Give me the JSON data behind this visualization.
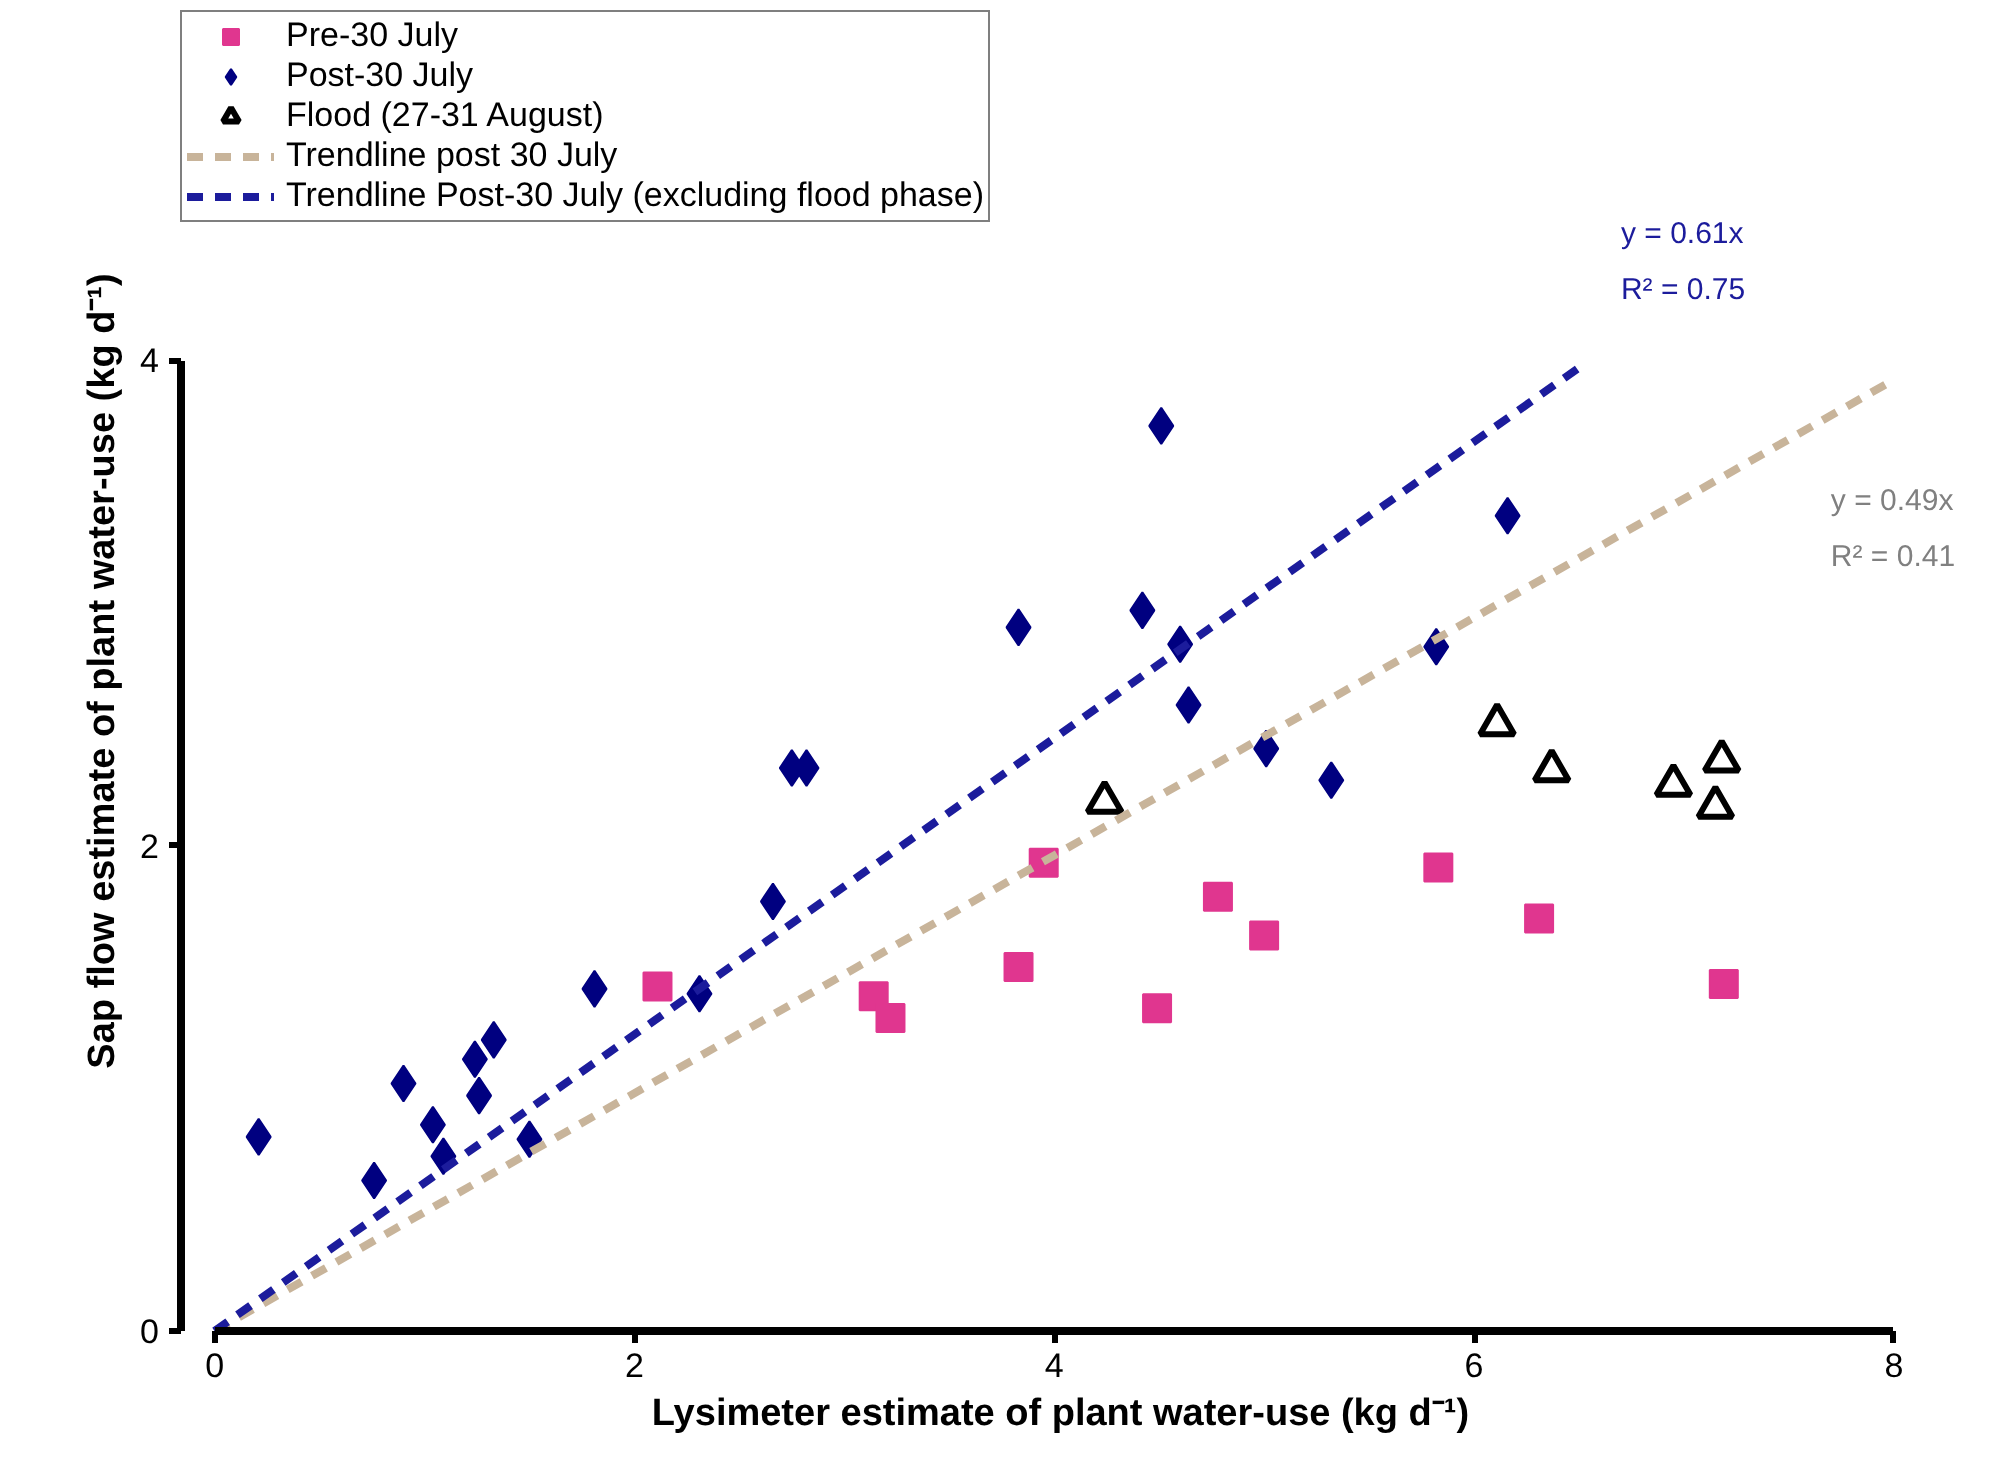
{
  "chart_data": {
    "type": "scatter",
    "xlabel": "Lysimeter estimate of plant water-use   (kg d⁻¹)",
    "ylabel": "Sap flow estimate of plant water-use (kg d⁻¹)",
    "xlim": [
      0,
      8
    ],
    "ylim": [
      0,
      4
    ],
    "xticks": [
      0,
      2,
      4,
      6,
      8
    ],
    "yticks": [
      0,
      2,
      4
    ],
    "grid": false,
    "legend": "top",
    "series": [
      {
        "name": "Pre-30 July",
        "marker": "square",
        "color": "#e0368f",
        "x": [
          2.11,
          3.14,
          3.22,
          3.83,
          3.95,
          4.49,
          4.78,
          5.0,
          5.83,
          6.31,
          7.19
        ],
        "values": [
          1.42,
          1.38,
          1.29,
          1.5,
          1.93,
          1.33,
          1.79,
          1.63,
          1.91,
          1.7,
          1.43
        ]
      },
      {
        "name": "Post-30 July",
        "marker": "diamond",
        "color": "#000080",
        "x": [
          0.21,
          0.76,
          0.9,
          1.04,
          1.09,
          1.26,
          1.24,
          1.33,
          1.5,
          1.81,
          2.31,
          2.66,
          2.75,
          2.82,
          3.83,
          4.51,
          4.42,
          4.6,
          4.64,
          5.01,
          5.32,
          5.82,
          6.16
        ],
        "values": [
          0.8,
          0.62,
          1.02,
          0.85,
          0.72,
          0.97,
          1.12,
          1.2,
          0.79,
          1.41,
          1.39,
          1.77,
          2.32,
          2.32,
          2.9,
          3.73,
          2.97,
          2.83,
          2.58,
          2.4,
          2.27,
          2.82,
          3.36
        ]
      },
      {
        "name": "Flood (27-31 August)",
        "marker": "triangle",
        "color": "#000000",
        "x": [
          4.24,
          6.11,
          6.37,
          6.95,
          7.18,
          7.15
        ],
        "values": [
          2.18,
          2.5,
          2.31,
          2.25,
          2.35,
          2.16
        ]
      },
      {
        "name": "Trendline post 30 July",
        "type": "line",
        "line_style": "dashed",
        "color": "#c8b49a",
        "x": [
          0,
          8
        ],
        "values": [
          0,
          3.92
        ]
      },
      {
        "name": "Trendline Post-30 July (excluding flood phase)",
        "type": "line",
        "line_style": "dashed",
        "color": "#1c1c9c",
        "x": [
          0,
          6.5
        ],
        "values": [
          0,
          3.97
        ]
      }
    ],
    "annotations": [
      "y = 0.61x",
      "R² = 0.75",
      "y = 0.49x",
      "R² = 0.41"
    ]
  }
}
